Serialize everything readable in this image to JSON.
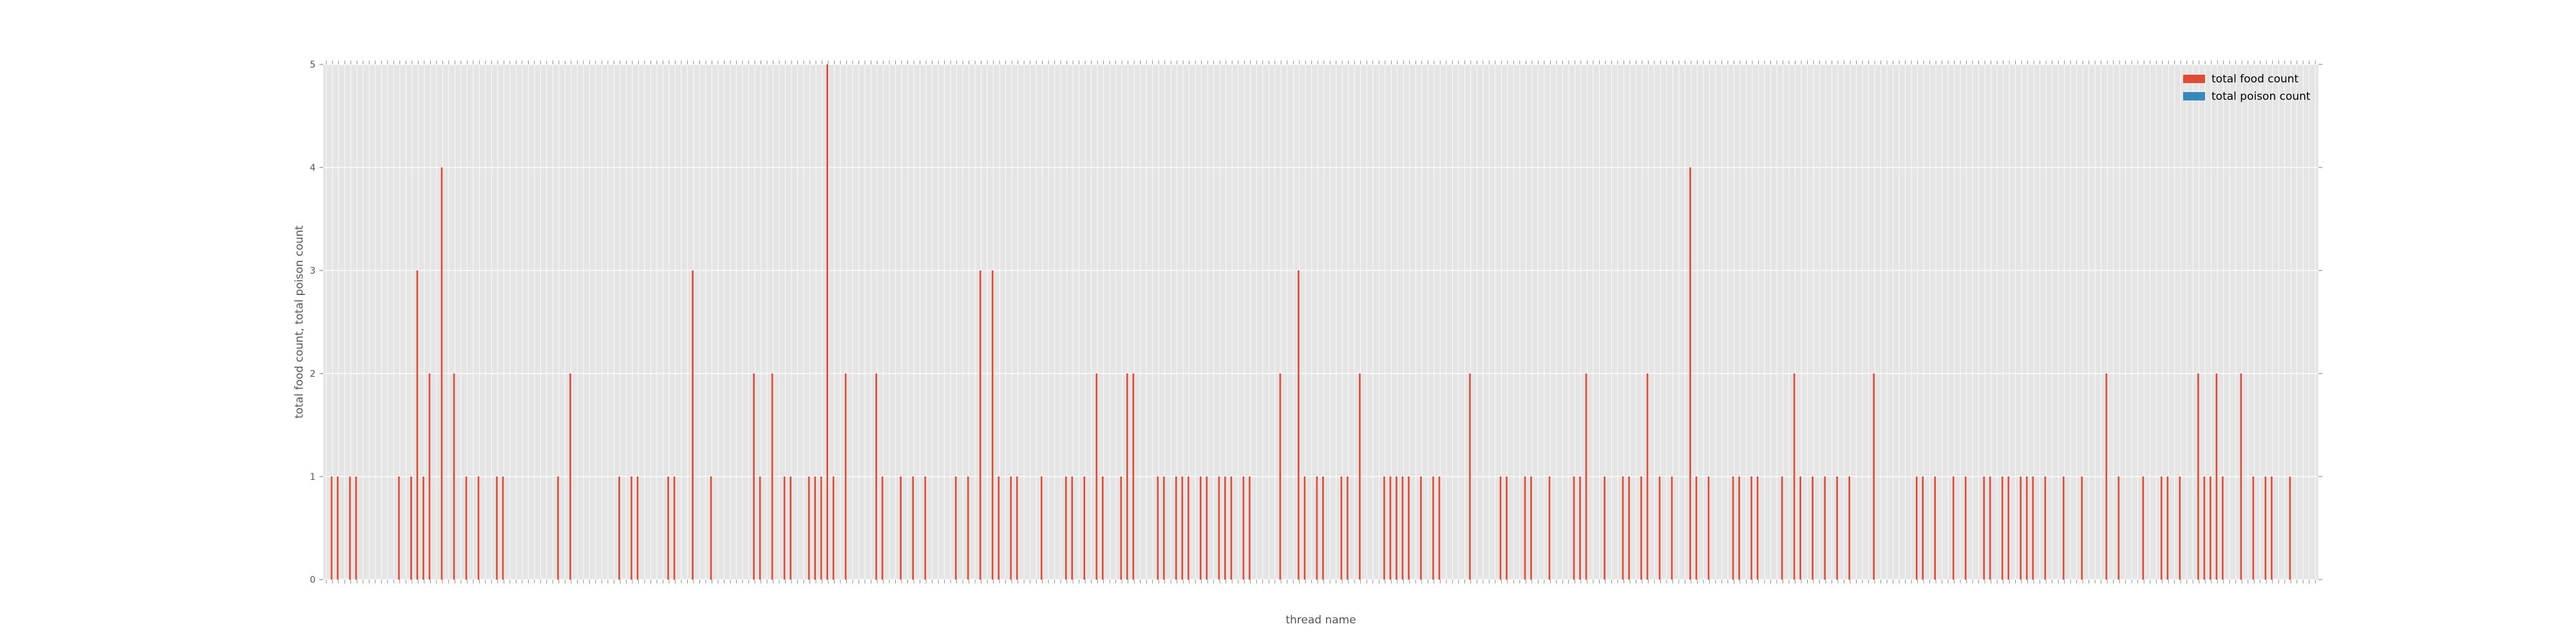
{
  "chart_data": {
    "type": "bar",
    "xlabel": "thread name",
    "ylabel": "total food count, total poison count",
    "ylim": [
      0,
      5
    ],
    "yticks": [
      0,
      1,
      2,
      3,
      4,
      5
    ],
    "grid": true,
    "legend_position": "top-right",
    "colors": {
      "food": "#E24A33",
      "poison": "#348ABD",
      "plot_bg": "#E5E5E5",
      "grid": "#FFFFFF"
    },
    "series": [
      {
        "name": "total food count",
        "color": "#E24A33",
        "values": [
          0,
          1,
          1,
          0,
          1,
          1,
          0,
          0,
          0,
          0,
          0,
          0,
          1,
          0,
          1,
          3,
          1,
          2,
          0,
          4,
          0,
          2,
          0,
          1,
          0,
          1,
          0,
          0,
          1,
          1,
          0,
          0,
          0,
          0,
          0,
          0,
          0,
          0,
          1,
          0,
          2,
          0,
          0,
          0,
          0,
          0,
          0,
          0,
          1,
          0,
          1,
          1,
          0,
          0,
          0,
          0,
          1,
          1,
          0,
          0,
          3,
          0,
          0,
          1,
          0,
          0,
          0,
          0,
          0,
          0,
          2,
          1,
          0,
          2,
          0,
          1,
          1,
          0,
          0,
          1,
          1,
          1,
          5,
          1,
          0,
          2,
          0,
          0,
          0,
          0,
          2,
          1,
          0,
          0,
          1,
          0,
          1,
          0,
          1,
          0,
          0,
          0,
          0,
          1,
          0,
          1,
          0,
          3,
          0,
          3,
          1,
          0,
          1,
          1,
          0,
          0,
          0,
          1,
          0,
          0,
          0,
          1,
          1,
          0,
          1,
          0,
          2,
          1,
          0,
          0,
          1,
          2,
          2,
          0,
          0,
          0,
          1,
          1,
          0,
          1,
          1,
          1,
          0,
          1,
          1,
          0,
          1,
          1,
          1,
          0,
          1,
          1,
          0,
          0,
          0,
          0,
          2,
          0,
          0,
          3,
          1,
          0,
          1,
          1,
          0,
          0,
          1,
          1,
          0,
          2,
          0,
          0,
          0,
          1,
          1,
          1,
          1,
          1,
          0,
          1,
          0,
          1,
          1,
          0,
          0,
          0,
          0,
          2,
          0,
          0,
          0,
          0,
          1,
          1,
          0,
          0,
          1,
          1,
          0,
          0,
          1,
          0,
          0,
          0,
          1,
          1,
          2,
          0,
          0,
          1,
          0,
          0,
          1,
          1,
          0,
          1,
          2,
          0,
          1,
          0,
          1,
          0,
          0,
          4,
          1,
          0,
          1,
          0,
          0,
          0,
          1,
          1,
          0,
          1,
          1,
          0,
          0,
          0,
          1,
          0,
          2,
          1,
          0,
          1,
          0,
          1,
          0,
          1,
          0,
          1,
          0,
          0,
          0,
          2,
          0,
          0,
          0,
          0,
          0,
          0,
          1,
          1,
          0,
          1,
          0,
          0,
          1,
          0,
          1,
          0,
          0,
          1,
          1,
          0,
          1,
          1,
          0,
          1,
          1,
          1,
          0,
          1,
          0,
          0,
          1,
          0,
          0,
          1,
          0,
          0,
          0,
          2,
          0,
          1,
          0,
          0,
          0,
          1,
          0,
          0,
          1,
          1,
          0,
          1,
          0,
          0,
          2,
          1,
          1,
          2,
          1,
          0,
          0,
          2,
          0,
          1,
          0,
          1,
          1,
          0,
          0,
          1,
          0,
          0,
          0,
          0
        ]
      },
      {
        "name": "total poison count",
        "color": "#348ABD",
        "values": [
          0,
          0,
          0,
          0,
          0,
          0,
          0,
          0,
          0,
          0,
          0,
          0,
          0,
          0,
          0,
          0,
          0,
          0,
          0,
          0,
          0,
          0,
          0,
          0,
          0,
          0,
          0,
          0,
          0,
          0,
          0,
          0,
          0,
          0,
          0,
          0,
          0,
          0,
          0,
          0,
          0,
          0,
          0,
          0,
          0,
          0,
          0,
          0,
          0,
          0,
          0,
          0,
          0,
          0,
          0,
          0,
          0,
          0,
          0,
          0,
          0,
          0,
          0,
          0,
          0,
          0,
          0,
          0,
          0,
          0,
          0,
          0,
          0,
          0,
          0,
          0,
          0,
          0,
          0,
          0,
          0,
          0,
          0,
          0,
          0,
          0,
          0,
          0,
          0,
          0,
          0,
          0,
          0,
          0,
          0,
          0,
          0,
          0,
          0,
          0,
          0,
          0,
          0,
          0,
          0,
          0,
          0,
          0,
          0,
          0,
          0,
          0,
          0,
          0,
          0,
          0,
          0,
          0,
          0,
          0,
          0,
          0,
          0,
          0,
          0,
          0,
          0,
          0,
          0,
          0,
          0,
          0,
          0,
          0,
          0,
          0,
          0,
          0,
          0,
          0,
          0,
          0,
          0,
          0,
          0,
          0,
          0,
          0,
          0,
          0,
          0,
          0,
          0,
          0,
          0,
          0,
          0,
          0,
          0,
          0,
          0,
          0,
          0,
          0,
          0,
          0,
          0,
          0,
          0,
          0,
          0,
          0,
          0,
          0,
          0,
          0,
          0,
          0,
          0,
          0,
          0,
          0,
          0,
          0,
          0,
          0,
          0,
          0,
          0,
          0,
          0,
          0,
          0,
          0,
          0,
          0,
          0,
          0,
          0,
          0,
          0,
          0,
          0,
          0,
          0,
          0,
          0,
          0,
          0,
          0,
          0,
          0,
          0,
          0,
          0,
          0,
          0,
          0,
          0,
          0,
          0,
          0,
          0,
          0,
          0,
          0,
          0,
          0,
          0,
          0,
          0,
          0,
          0,
          0,
          0,
          0,
          0,
          0,
          0,
          0,
          0,
          0,
          0,
          0,
          0,
          0,
          0,
          0,
          0,
          0,
          0,
          0,
          0,
          0,
          0,
          0,
          0,
          0,
          0,
          0,
          0,
          0,
          0,
          0,
          0,
          0,
          0,
          0,
          0,
          0,
          0,
          0,
          0,
          0,
          0,
          0,
          0,
          0,
          0,
          0,
          0,
          0,
          0,
          0,
          0,
          0,
          0,
          0,
          0,
          0,
          0,
          0,
          0,
          0,
          0,
          0,
          0,
          0,
          0,
          0,
          0,
          0,
          0,
          0,
          0,
          0,
          0,
          0,
          0,
          0,
          0,
          0,
          0,
          0,
          0,
          0,
          0,
          0,
          0,
          0,
          0,
          0,
          0,
          0,
          0
        ]
      }
    ]
  }
}
